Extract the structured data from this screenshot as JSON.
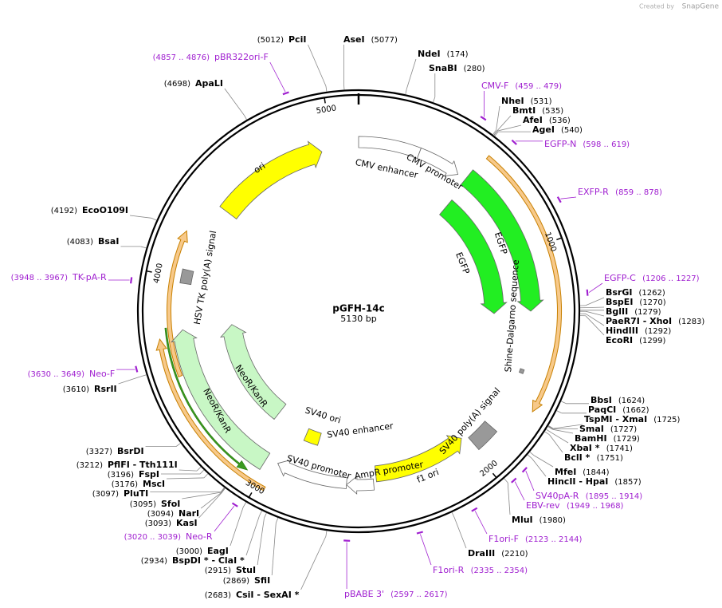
{
  "header": {
    "watermark": "Created by",
    "brand": "SnapGene"
  },
  "map": {
    "name": "pGFH-14c",
    "length": "5130 bp",
    "ruler": [
      1000,
      2000,
      3000,
      4000,
      5000
    ]
  },
  "features": [
    {
      "label": "ori"
    },
    {
      "label": "CMV enhancer"
    },
    {
      "label": "CMV promoter"
    },
    {
      "label": "EGFP"
    },
    {
      "label": "EGFP"
    },
    {
      "label": "Shine-Dalgarno sequence"
    },
    {
      "label": "SV40 poly(A) signal"
    },
    {
      "label": "f1 ori"
    },
    {
      "label": "AmpR promoter"
    },
    {
      "label": "SV40 promoter"
    },
    {
      "label": "SV40 ori"
    },
    {
      "label": "SV40 enhancer"
    },
    {
      "label": "NeoR/KanR"
    },
    {
      "label": "NeoR/KanR"
    },
    {
      "label": "HSV TK poly(A) signal"
    }
  ],
  "sites": [
    {
      "name": "PciI",
      "position": "(5012)"
    },
    {
      "name": "AseI",
      "position": "(5077)"
    },
    {
      "name": "NdeI",
      "position": "(174)"
    },
    {
      "name": "SnaBI",
      "position": "(280)"
    },
    {
      "name": "NheI",
      "position": "(531)"
    },
    {
      "name": "BmtI",
      "position": "(535)"
    },
    {
      "name": "AfeI",
      "position": "(536)"
    },
    {
      "name": "AgeI",
      "position": "(540)"
    },
    {
      "name": "BsrGI",
      "position": "(1262)"
    },
    {
      "name": "BspEI",
      "position": "(1270)"
    },
    {
      "name": "BglII",
      "position": "(1279)"
    },
    {
      "name": "PaeR7I - XhoI",
      "position": "(1283)"
    },
    {
      "name": "HindIII",
      "position": "(1292)"
    },
    {
      "name": "EcoRI",
      "position": "(1299)"
    },
    {
      "name": "BbsI",
      "position": "(1624)"
    },
    {
      "name": "PaqCI",
      "position": "(1662)"
    },
    {
      "name": "TspMI - XmaI",
      "position": "(1725)"
    },
    {
      "name": "SmaI",
      "position": "(1727)"
    },
    {
      "name": "BamHI",
      "position": "(1729)"
    },
    {
      "name": "XbaI *",
      "position": "(1741)"
    },
    {
      "name": "BclI *",
      "position": "(1751)"
    },
    {
      "name": "MfeI",
      "position": "(1844)"
    },
    {
      "name": "HincII - HpaI",
      "position": "(1857)"
    },
    {
      "name": "MluI",
      "position": "(1980)"
    },
    {
      "name": "DraIII",
      "position": "(2210)"
    },
    {
      "name": "CsiI - SexAI *",
      "position": "(2683)"
    },
    {
      "name": "SfiI",
      "position": "(2869)"
    },
    {
      "name": "StuI",
      "position": "(2915)"
    },
    {
      "name": "BspDI * - ClaI *",
      "position": "(2934)"
    },
    {
      "name": "EagI",
      "position": "(3000)"
    },
    {
      "name": "KasI",
      "position": "(3093)"
    },
    {
      "name": "NarI",
      "position": "(3094)"
    },
    {
      "name": "SfoI",
      "position": "(3095)"
    },
    {
      "name": "PluTI",
      "position": "(3097)"
    },
    {
      "name": "MscI",
      "position": "(3176)"
    },
    {
      "name": "FspI",
      "position": "(3196)"
    },
    {
      "name": "PflFI - Tth111I",
      "position": "(3212)"
    },
    {
      "name": "BsrDI",
      "position": "(3327)"
    },
    {
      "name": "RsrII",
      "position": "(3610)"
    },
    {
      "name": "BsaI",
      "position": "(4083)"
    },
    {
      "name": "EcoO109I",
      "position": "(4192)"
    },
    {
      "name": "ApaLI",
      "position": "(4698)"
    }
  ],
  "primers": [
    {
      "name": "pBR322ori-F",
      "position": "(4857 .. 4876)"
    },
    {
      "name": "CMV-F",
      "position": "(459 .. 479)"
    },
    {
      "name": "EGFP-N",
      "position": "(598 .. 619)"
    },
    {
      "name": "EXFP-R",
      "position": "(859 .. 878)"
    },
    {
      "name": "EGFP-C",
      "position": "(1206 .. 1227)"
    },
    {
      "name": "SV40pA-R",
      "position": "(1895 .. 1914)"
    },
    {
      "name": "EBV-rev",
      "position": "(1949 .. 1968)"
    },
    {
      "name": "F1ori-F",
      "position": "(2123 .. 2144)"
    },
    {
      "name": "F1ori-R",
      "position": "(2335 .. 2354)"
    },
    {
      "name": "pBABE 3'",
      "position": "(2597 .. 2617)"
    },
    {
      "name": "Neo-R",
      "position": "(3020 .. 3039)"
    },
    {
      "name": "Neo-F",
      "position": "(3630 .. 3649)"
    },
    {
      "name": "TK-pA-R",
      "position": "(3948 .. 3967)"
    }
  ]
}
